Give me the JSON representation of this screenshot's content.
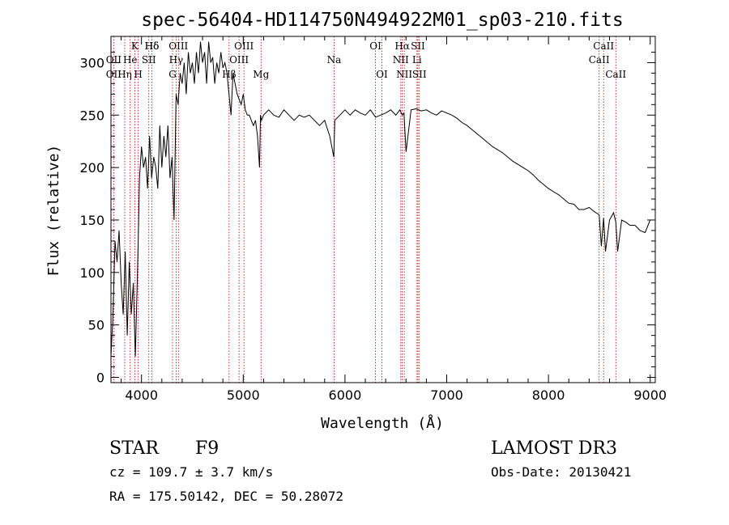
{
  "chart_data": {
    "type": "line",
    "title": "spec-56404-HD114750N494922M01_sp03-210.fits",
    "xlabel": "Wavelength (Å)",
    "ylabel": "Flux (relative)",
    "xlim": [
      3700,
      9050
    ],
    "ylim": [
      -5,
      325
    ],
    "xticks": [
      4000,
      5000,
      6000,
      7000,
      8000,
      9000
    ],
    "yticks": [
      0,
      50,
      100,
      150,
      200,
      250,
      300
    ],
    "grid": false,
    "series": [
      {
        "x": [
          3700,
          3720,
          3740,
          3760,
          3780,
          3800,
          3820,
          3840,
          3860,
          3880,
          3900,
          3920,
          3940,
          3960,
          3970,
          3980,
          4000,
          4020,
          4040,
          4060,
          4080,
          4100,
          4120,
          4140,
          4160,
          4180,
          4200,
          4220,
          4240,
          4260,
          4280,
          4300,
          4320,
          4340,
          4360,
          4380,
          4400,
          4420,
          4440,
          4460,
          4480,
          4500,
          4520,
          4540,
          4560,
          4580,
          4600,
          4620,
          4640,
          4660,
          4680,
          4700,
          4720,
          4740,
          4760,
          4780,
          4800,
          4820,
          4840,
          4860,
          4880,
          4900,
          4920,
          4940,
          4960,
          4980,
          5000,
          5020,
          5040,
          5060,
          5080,
          5100,
          5120,
          5140,
          5160,
          5170,
          5180,
          5200,
          5250,
          5300,
          5350,
          5400,
          5450,
          5500,
          5550,
          5600,
          5650,
          5700,
          5750,
          5800,
          5850,
          5890,
          5900,
          5950,
          6000,
          6050,
          6100,
          6150,
          6200,
          6250,
          6300,
          6350,
          6400,
          6450,
          6500,
          6540,
          6563,
          6580,
          6600,
          6650,
          6700,
          6750,
          6800,
          6850,
          6900,
          6950,
          7000,
          7050,
          7100,
          7150,
          7200,
          7250,
          7300,
          7350,
          7400,
          7450,
          7500,
          7550,
          7600,
          7650,
          7700,
          7750,
          7800,
          7850,
          7900,
          7950,
          8000,
          8050,
          8100,
          8150,
          8200,
          8250,
          8300,
          8350,
          8400,
          8450,
          8498,
          8520,
          8542,
          8560,
          8600,
          8640,
          8662,
          8680,
          8720,
          8760,
          8800,
          8850,
          8900,
          8950,
          9000
        ],
        "values": [
          20,
          60,
          130,
          110,
          140,
          90,
          60,
          120,
          40,
          110,
          60,
          90,
          20,
          100,
          140,
          190,
          220,
          200,
          210,
          180,
          230,
          190,
          210,
          200,
          180,
          240,
          200,
          230,
          210,
          240,
          190,
          210,
          150,
          270,
          260,
          290,
          280,
          300,
          270,
          310,
          290,
          300,
          280,
          310,
          290,
          320,
          300,
          310,
          280,
          320,
          300,
          305,
          280,
          300,
          290,
          310,
          295,
          300,
          290,
          270,
          250,
          290,
          280,
          270,
          265,
          260,
          270,
          255,
          250,
          250,
          245,
          240,
          245,
          230,
          200,
          250,
          245,
          250,
          255,
          250,
          248,
          255,
          250,
          245,
          250,
          248,
          250,
          245,
          240,
          245,
          230,
          210,
          245,
          250,
          255,
          250,
          255,
          252,
          250,
          255,
          248,
          250,
          252,
          255,
          250,
          255,
          250,
          252,
          215,
          255,
          256,
          254,
          255,
          252,
          250,
          254,
          252,
          250,
          247,
          243,
          240,
          236,
          232,
          228,
          224,
          220,
          217,
          214,
          210,
          206,
          203,
          200,
          197,
          193,
          188,
          184,
          180,
          177,
          174,
          170,
          166,
          165,
          160,
          160,
          162,
          158,
          155,
          125,
          152,
          120,
          150,
          157,
          148,
          120,
          150,
          148,
          145,
          145,
          140,
          138,
          150
        ]
      }
    ],
    "line_labels": [
      {
        "label": "Hδ",
        "x": 4102
      },
      {
        "label": "K",
        "x": 3934
      },
      {
        "label": "Hδ",
        "x": 4102
      },
      {
        "label": "OIII",
        "x": 4363
      },
      {
        "label": "OIII",
        "x": 5007
      },
      {
        "label": "OI",
        "x": 6300
      },
      {
        "label": "Hα",
        "x": 6563
      },
      {
        "label": "SII",
        "x": 6717
      },
      {
        "label": "CaII",
        "x": 8542
      },
      {
        "label": "OII",
        "x": 3727
      },
      {
        "label": "He",
        "x": 3889
      },
      {
        "label": "SII",
        "x": 4072
      },
      {
        "label": "Hγ",
        "x": 4340
      },
      {
        "label": "OIII",
        "x": 4959
      },
      {
        "label": "Na",
        "x": 5893
      },
      {
        "label": "NII",
        "x": 6548
      },
      {
        "label": "Li",
        "x": 6708
      },
      {
        "label": "CaII",
        "x": 8498
      },
      {
        "label": "OII",
        "x": 3727
      },
      {
        "label": "Hη",
        "x": 3835
      },
      {
        "label": "H",
        "x": 3968
      },
      {
        "label": "G",
        "x": 4305
      },
      {
        "label": "Hβ",
        "x": 4861
      },
      {
        "label": "Mg",
        "x": 5175
      },
      {
        "label": "OI",
        "x": 6363
      },
      {
        "label": "NII",
        "x": 6583
      },
      {
        "label": "SII",
        "x": 6731
      },
      {
        "label": "CaII",
        "x": 8662
      }
    ]
  },
  "info": {
    "object_class": "STAR",
    "subclass": "F9",
    "survey": "LAMOST DR3",
    "cz": "cz = 109.7 ± 3.7 km/s",
    "obs_date": "Obs-Date: 20130421",
    "coords": "RA = 175.50142, DEC =  50.28072"
  },
  "colors": {
    "spectrum": "#000000",
    "marker_lines": "#c00000"
  }
}
